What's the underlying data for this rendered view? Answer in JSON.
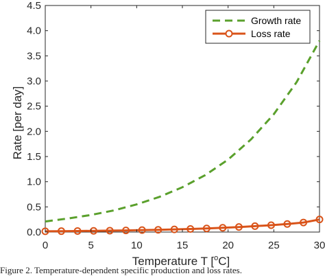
{
  "chart_data": {
    "type": "line",
    "xlabel": "Temperature T [",
    "xlabel_sup": "o",
    "xlabel_end": "C]",
    "ylabel": "Rate [per day]",
    "xlim": [
      0,
      30
    ],
    "ylim": [
      0,
      4.5
    ],
    "xticks": [
      "0",
      "5",
      "10",
      "15",
      "20",
      "25",
      "30"
    ],
    "yticks": [
      "0.0",
      "0.5",
      "1.0",
      "1.5",
      "2.0",
      "2.5",
      "3.0",
      "3.5",
      "4.0",
      "4.5"
    ],
    "grid": false,
    "legend_position": "top-right",
    "series": [
      {
        "name": "Growth rate",
        "color": "#5aa02c",
        "style": "dashed",
        "x": [
          0,
          2.5,
          5,
          7.5,
          10,
          12.5,
          15,
          17.5,
          20,
          22.5,
          25,
          27.5,
          30
        ],
        "y": [
          0.21,
          0.27,
          0.34,
          0.43,
          0.55,
          0.7,
          0.89,
          1.13,
          1.44,
          1.84,
          2.34,
          2.98,
          3.8
        ]
      },
      {
        "name": "Loss rate",
        "color": "#d95319",
        "style": "solid-circle",
        "x": [
          0,
          1.76,
          3.53,
          5.29,
          7.06,
          8.82,
          10.59,
          12.35,
          14.12,
          15.88,
          17.65,
          19.41,
          21.18,
          22.94,
          24.71,
          26.47,
          28.24,
          30
        ],
        "y": [
          0.015,
          0.018,
          0.021,
          0.024,
          0.028,
          0.033,
          0.039,
          0.045,
          0.053,
          0.062,
          0.072,
          0.085,
          0.1,
          0.117,
          0.137,
          0.16,
          0.19,
          0.25
        ]
      }
    ]
  },
  "caption": "Figure 2. Temperature-dependent specific production and loss rates."
}
